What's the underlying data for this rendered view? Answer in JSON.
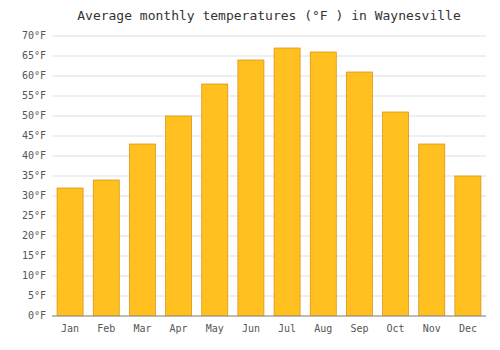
{
  "chart_data": {
    "type": "bar",
    "title": "Average monthly temperatures (°F ) in Waynesville",
    "categories": [
      "Jan",
      "Feb",
      "Mar",
      "Apr",
      "May",
      "Jun",
      "Jul",
      "Aug",
      "Sep",
      "Oct",
      "Nov",
      "Dec"
    ],
    "values": [
      32,
      34,
      43,
      50,
      58,
      64,
      67,
      66,
      61,
      51,
      43,
      35
    ],
    "color": "#FFC020",
    "ylim": [
      0,
      70
    ],
    "yticks": [
      {
        "value": 0,
        "label": "0°F"
      },
      {
        "value": 5,
        "label": "5°F"
      },
      {
        "value": 10,
        "label": "10°F"
      },
      {
        "value": 15,
        "label": "15°F"
      },
      {
        "value": 20,
        "label": "20°F"
      },
      {
        "value": 25,
        "label": "25°F"
      },
      {
        "value": 30,
        "label": "30°F"
      },
      {
        "value": 35,
        "label": "35°F"
      },
      {
        "value": 40,
        "label": "40°F"
      },
      {
        "value": 45,
        "label": "45°F"
      },
      {
        "value": 50,
        "label": "50°F"
      },
      {
        "value": 55,
        "label": "55°F"
      },
      {
        "value": 60,
        "label": "60°F"
      },
      {
        "value": 65,
        "label": "65°F"
      },
      {
        "value": 70,
        "label": "70°F"
      }
    ],
    "grid": true
  }
}
